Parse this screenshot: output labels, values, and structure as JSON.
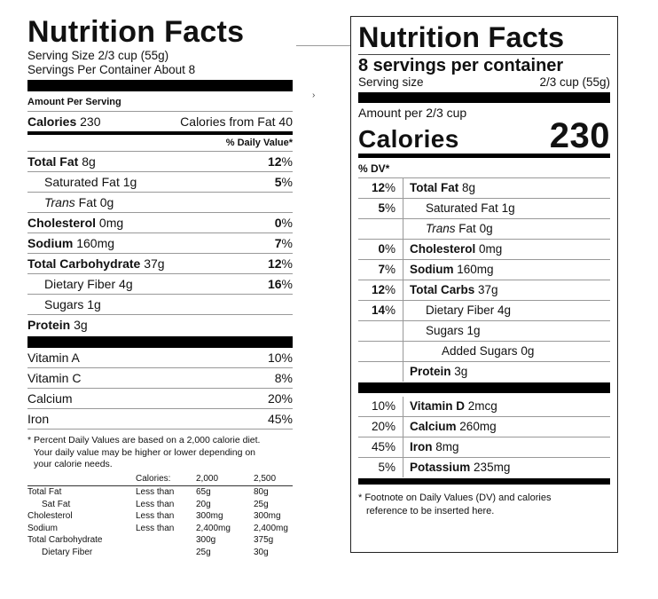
{
  "old_label": {
    "title": "Nutrition Facts",
    "serving_size": "Serving Size 2/3 cup (55g)",
    "servings_per_container": "Servings Per Container About 8",
    "amount_per_serving": "Amount Per Serving",
    "calories_label": "Calories",
    "calories_value": "230",
    "calories_from_fat": "Calories from Fat 40",
    "dv_header": "% Daily Value*",
    "nutrients": [
      {
        "label": "Total Fat",
        "amount": "8g",
        "dv": "12",
        "bold": true
      },
      {
        "label": "Saturated Fat",
        "amount": "1g",
        "dv": "5"
      },
      {
        "label": "Trans",
        "label2": "Fat",
        "amount": "0g"
      },
      {
        "label": "Cholesterol",
        "amount": "0mg",
        "dv": "0"
      },
      {
        "label": "Sodium",
        "amount": "160mg",
        "dv": "7"
      },
      {
        "label": "Total Carbohydrate",
        "amount": "37g",
        "dv": "12"
      },
      {
        "label": "Dietary Fiber",
        "amount": "4g",
        "dv": "16"
      },
      {
        "label": "Sugars",
        "amount": "1g"
      },
      {
        "label": "Protein",
        "amount": "3g"
      }
    ],
    "vitamins": [
      {
        "label": "Vitamin A",
        "dv": "10%"
      },
      {
        "label": "Vitamin C",
        "dv": "8%"
      },
      {
        "label": "Calcium",
        "dv": "20%"
      },
      {
        "label": "Iron",
        "dv": "45%"
      }
    ],
    "footnote_1": "* Percent Daily Values are based on a 2,000 calorie diet.",
    "footnote_2": "Your daily value may be higher or lower depending on",
    "footnote_3": "your calorie needs.",
    "table": {
      "header": [
        "",
        "Calories:",
        "2,000",
        "2,500"
      ],
      "rows": [
        [
          "Total Fat",
          "Less than",
          "65g",
          "80g"
        ],
        [
          "Sat Fat",
          "Less than",
          "20g",
          "25g"
        ],
        [
          "Cholesterol",
          "Less than",
          "300mg",
          "300mg"
        ],
        [
          "Sodium",
          "Less than",
          "2,400mg",
          "2,400mg"
        ],
        [
          "Total Carbohydrate",
          "",
          "300g",
          "375g"
        ],
        [
          "Dietary Fiber",
          "",
          "25g",
          "30g"
        ]
      ]
    }
  },
  "mid_mark": "›",
  "new_label": {
    "title": "Nutrition Facts",
    "servings": "8 servings per container",
    "serving_size_label": "Serving size",
    "serving_size_value": "2/3 cup (55g)",
    "amount_per": "Amount per 2/3 cup",
    "calories_label": "Calories",
    "calories_value": "230",
    "dv_header": "% DV*",
    "rows": [
      {
        "dv": "12",
        "label": "Total Fat",
        "amount": "8g"
      },
      {
        "dv": "5",
        "label": "Saturated Fat",
        "amount": "1g"
      },
      {
        "dv": "",
        "label": "Trans",
        "label2": "Fat",
        "amount": "0g"
      },
      {
        "dv": "0",
        "label": "Cholesterol",
        "amount": "0mg"
      },
      {
        "dv": "7",
        "label": "Sodium",
        "amount": "160mg"
      },
      {
        "dv": "12",
        "label": "Total Carbs",
        "amount": "37g"
      },
      {
        "dv": "14",
        "label": "Dietary Fiber",
        "amount": "4g"
      },
      {
        "dv": "",
        "label": "Sugars",
        "amount": "1g"
      },
      {
        "dv": "",
        "label": "Added Sugars",
        "amount": "0g"
      },
      {
        "dv": "",
        "label": "Protein",
        "amount": "3g"
      }
    ],
    "minerals": [
      {
        "dv": "10%",
        "label": "Vitamin D",
        "amount": "2mcg"
      },
      {
        "dv": "20%",
        "label": "Calcium",
        "amount": "260mg"
      },
      {
        "dv": "45%",
        "label": "Iron",
        "amount": "8mg"
      },
      {
        "dv": "5%",
        "label": "Potassium",
        "amount": "235mg"
      }
    ],
    "footnote_1": "* Footnote on Daily Values (DV) and calories",
    "footnote_2": "reference to be inserted here."
  }
}
